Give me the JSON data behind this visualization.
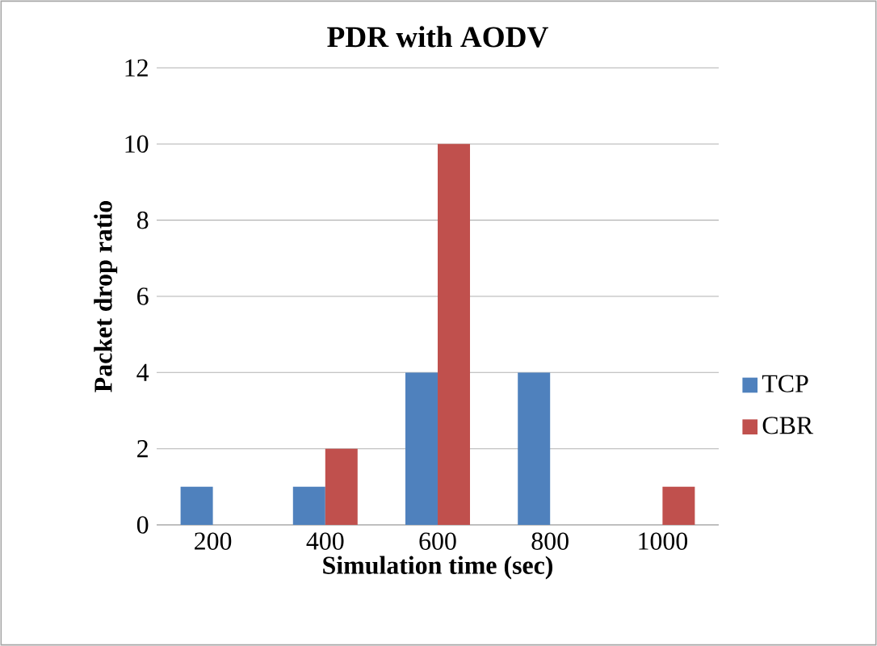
{
  "chart_data": {
    "type": "bar",
    "title": "PDR with AODV",
    "xlabel": "Simulation time (sec)",
    "ylabel": "Packet drop ratio",
    "categories": [
      "200",
      "400",
      "600",
      "800",
      "1000"
    ],
    "series": [
      {
        "name": "TCP",
        "color": "#4f81bd",
        "values": [
          1,
          1,
          4,
          4,
          0
        ]
      },
      {
        "name": "CBR",
        "color": "#c0504d",
        "values": [
          0,
          2,
          10,
          0,
          1
        ]
      }
    ],
    "ylim": [
      0,
      12
    ],
    "yticks": [
      0,
      2,
      4,
      6,
      8,
      10,
      12
    ],
    "grid": "y",
    "legend": "right"
  }
}
